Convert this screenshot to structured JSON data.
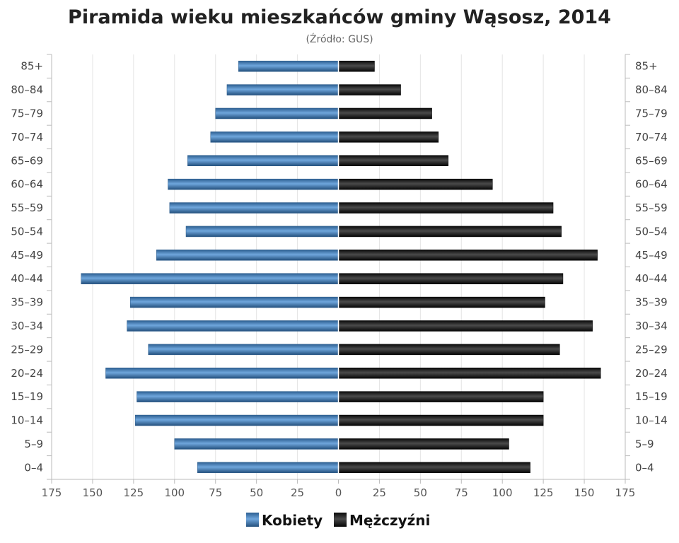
{
  "chart_data": {
    "type": "bar",
    "orientation": "horizontal",
    "layout": "population-pyramid",
    "title": "Piramida wieku mieszkańców gminy Wąsosz, 2014",
    "subtitle": "(Źródło: GUS)",
    "categories": [
      "85+",
      "80-84",
      "75-79",
      "70-74",
      "65-69",
      "60-64",
      "55-59",
      "50-54",
      "45-49",
      "40-44",
      "35-39",
      "30-34",
      "25-29",
      "20-24",
      "15-19",
      "10-14",
      "5-9",
      "0-4"
    ],
    "series": [
      {
        "name": "Kobiety",
        "side": "left",
        "color": "#3b78b5",
        "values": [
          61,
          68,
          75,
          78,
          92,
          104,
          103,
          93,
          111,
          157,
          127,
          129,
          116,
          142,
          123,
          124,
          100,
          86
        ]
      },
      {
        "name": "Mężczyźni",
        "side": "right",
        "color": "#1a1a1a",
        "values": [
          22,
          38,
          57,
          61,
          67,
          94,
          131,
          136,
          158,
          137,
          126,
          155,
          135,
          160,
          125,
          125,
          104,
          117
        ]
      }
    ],
    "xlim": [
      -175,
      175
    ],
    "xticks": [
      -175,
      -150,
      -125,
      -100,
      -75,
      -50,
      -25,
      0,
      25,
      50,
      75,
      100,
      125,
      150,
      175
    ],
    "xtick_labels": [
      "175",
      "150",
      "125",
      "100",
      "75",
      "50",
      "25",
      "0",
      "25",
      "50",
      "75",
      "100",
      "125",
      "150",
      "175"
    ],
    "grid": true,
    "legend_position": "bottom"
  }
}
